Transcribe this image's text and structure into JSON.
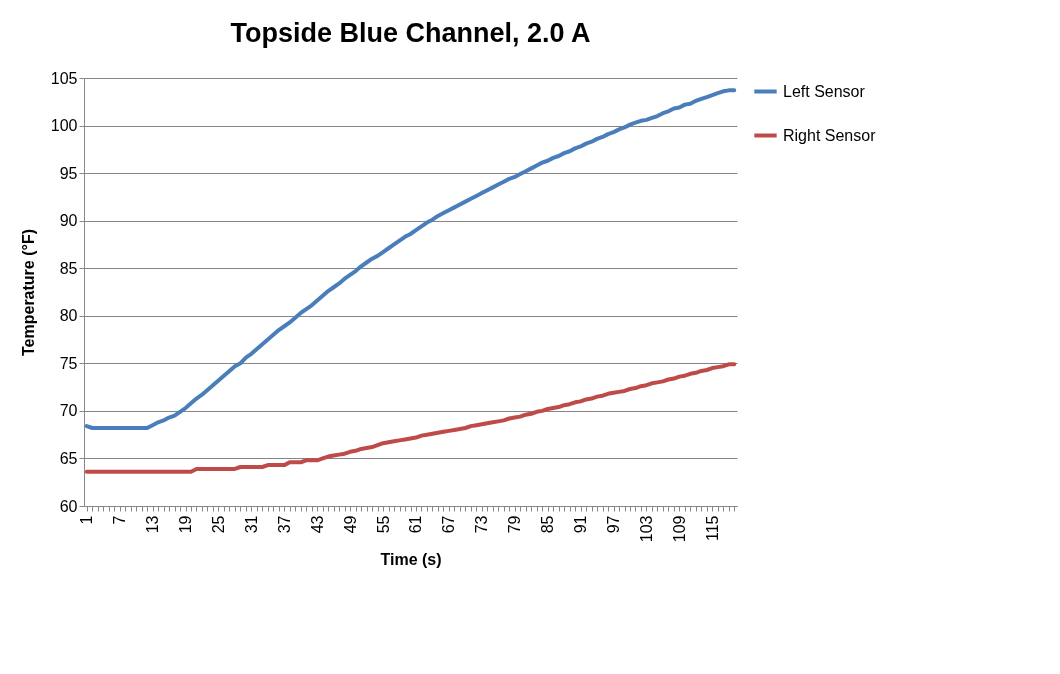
{
  "chart_data": {
    "type": "line",
    "title": "Topside Blue Channel, 2.0 A",
    "xlabel": "Time (s)",
    "ylabel": "Temperature (°F)",
    "categories": [
      "1",
      null,
      null,
      null,
      null,
      null,
      "7",
      null,
      null,
      null,
      null,
      null,
      "13",
      null,
      null,
      null,
      null,
      null,
      "19",
      null,
      null,
      null,
      null,
      null,
      "25",
      null,
      null,
      null,
      null,
      null,
      "31",
      null,
      null,
      null,
      null,
      null,
      "37",
      null,
      null,
      null,
      null,
      null,
      "43",
      null,
      null,
      null,
      null,
      null,
      "49",
      null,
      null,
      null,
      null,
      null,
      "55",
      null,
      null,
      null,
      null,
      null,
      "61",
      null,
      null,
      null,
      null,
      null,
      "67",
      null,
      null,
      null,
      null,
      null,
      "73",
      null,
      null,
      null,
      null,
      null,
      "79",
      null,
      null,
      null,
      null,
      null,
      "85",
      null,
      null,
      null,
      null,
      null,
      "91",
      null,
      null,
      null,
      null,
      null,
      "97",
      null,
      null,
      null,
      null,
      null,
      "103",
      null,
      null,
      null,
      null,
      null,
      "109",
      null,
      null,
      null,
      null,
      null,
      "115",
      null,
      null,
      null,
      null
    ],
    "series": [
      {
        "name": "Left Sensor",
        "color": "#4a7ebb",
        "values": [
          68.4,
          68.2,
          68.2,
          68.2,
          68.2,
          68.2,
          68.2,
          68.2,
          68.2,
          68.2,
          68.2,
          68.2,
          68.5,
          68.8,
          69.0,
          69.3,
          69.5,
          69.9,
          70.3,
          70.8,
          71.3,
          71.7,
          72.2,
          72.7,
          73.2,
          73.7,
          74.2,
          74.7,
          75.0,
          75.6,
          76.0,
          76.5,
          77.0,
          77.5,
          78.0,
          78.5,
          78.9,
          79.3,
          79.8,
          80.3,
          80.7,
          81.1,
          81.6,
          82.1,
          82.6,
          83.0,
          83.4,
          83.9,
          84.3,
          84.7,
          85.2,
          85.6,
          86.0,
          86.3,
          86.7,
          87.1,
          87.5,
          87.9,
          88.3,
          88.6,
          89.0,
          89.4,
          89.8,
          90.1,
          90.5,
          90.8,
          91.1,
          91.4,
          91.7,
          92.0,
          92.3,
          92.6,
          92.9,
          93.2,
          93.5,
          93.8,
          94.1,
          94.4,
          94.6,
          94.9,
          95.2,
          95.5,
          95.8,
          96.1,
          96.3,
          96.6,
          96.8,
          97.1,
          97.3,
          97.6,
          97.8,
          98.1,
          98.3,
          98.6,
          98.8,
          99.1,
          99.3,
          99.6,
          99.8,
          100.1,
          100.3,
          100.5,
          100.6,
          100.8,
          101.0,
          101.3,
          101.5,
          101.8,
          101.9,
          102.2,
          102.3,
          102.6,
          102.8,
          103.0,
          103.2,
          103.4,
          103.6,
          103.7,
          103.7
        ]
      },
      {
        "name": "Right Sensor",
        "color": "#be4b48",
        "values": [
          63.6,
          63.6,
          63.6,
          63.6,
          63.6,
          63.6,
          63.6,
          63.6,
          63.6,
          63.6,
          63.6,
          63.6,
          63.6,
          63.6,
          63.6,
          63.6,
          63.6,
          63.6,
          63.6,
          63.6,
          63.9,
          63.9,
          63.9,
          63.9,
          63.9,
          63.9,
          63.9,
          63.9,
          64.1,
          64.1,
          64.1,
          64.1,
          64.1,
          64.3,
          64.3,
          64.3,
          64.3,
          64.6,
          64.6,
          64.6,
          64.8,
          64.8,
          64.8,
          65.0,
          65.2,
          65.3,
          65.4,
          65.5,
          65.7,
          65.8,
          66.0,
          66.1,
          66.2,
          66.4,
          66.6,
          66.7,
          66.8,
          66.9,
          67.0,
          67.1,
          67.2,
          67.4,
          67.5,
          67.6,
          67.7,
          67.8,
          67.9,
          68.0,
          68.1,
          68.2,
          68.4,
          68.5,
          68.6,
          68.7,
          68.8,
          68.9,
          69.0,
          69.2,
          69.3,
          69.4,
          69.6,
          69.7,
          69.9,
          70.0,
          70.2,
          70.3,
          70.4,
          70.6,
          70.7,
          70.9,
          71.0,
          71.2,
          71.3,
          71.5,
          71.6,
          71.8,
          71.9,
          72.0,
          72.1,
          72.3,
          72.4,
          72.6,
          72.7,
          72.9,
          73.0,
          73.1,
          73.3,
          73.4,
          73.6,
          73.7,
          73.9,
          74.0,
          74.2,
          74.3,
          74.5,
          74.6,
          74.7,
          74.9,
          74.9
        ]
      }
    ],
    "ylim": [
      60,
      105
    ],
    "yticks": [
      60,
      65,
      70,
      75,
      80,
      85,
      90,
      95,
      100,
      105
    ],
    "grid": "y",
    "legend": "right"
  }
}
